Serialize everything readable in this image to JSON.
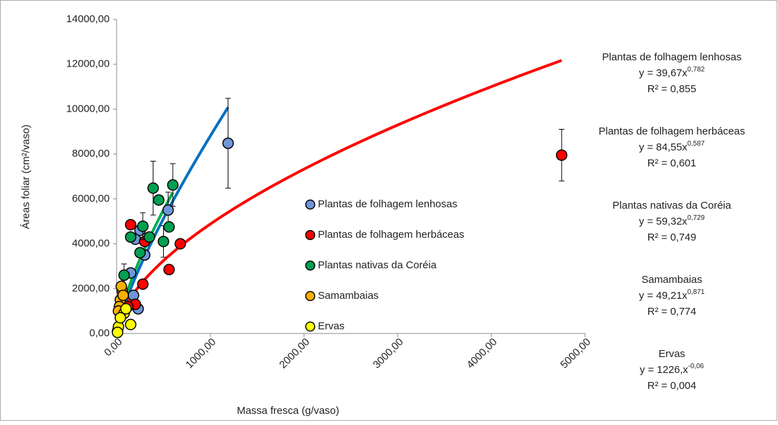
{
  "chart_data": {
    "type": "scatter",
    "x_label": "Massa fresca (g/vaso)",
    "y_label": "Áreas foliar (cm²/vaso)",
    "xlim": [
      0,
      5000
    ],
    "ylim": [
      0,
      14000
    ],
    "xticks": [
      {
        "value": 0,
        "label": "0,00"
      },
      {
        "value": 1000,
        "label": "1000,00"
      },
      {
        "value": 2000,
        "label": "2000,00"
      },
      {
        "value": 3000,
        "label": "3000,00"
      },
      {
        "value": 4000,
        "label": "4000,00"
      },
      {
        "value": 5000,
        "label": "5000,00"
      }
    ],
    "yticks": [
      {
        "value": 0,
        "label": "0,00"
      },
      {
        "value": 2000,
        "label": "2000,00"
      },
      {
        "value": 4000,
        "label": "4000,00"
      },
      {
        "value": 6000,
        "label": "6000,00"
      },
      {
        "value": 8000,
        "label": "8000,00"
      },
      {
        "value": 10000,
        "label": "10000,00"
      },
      {
        "value": 12000,
        "label": "12000,00"
      },
      {
        "value": 14000,
        "label": "14000,00"
      }
    ],
    "series": [
      {
        "name": "Plantas de folhagem lenhosas",
        "color": "#6f96d8",
        "line_color": "#0070c0",
        "x": [
          1190,
          200,
          250,
          150,
          230,
          180,
          550,
          300
        ],
        "values": [
          8480,
          4200,
          4600,
          2700,
          1100,
          1700,
          5500,
          3500
        ],
        "errors": [
          2000,
          null,
          null,
          null,
          null,
          null,
          800,
          null
        ],
        "trend": {
          "equation": "y = 39,67x",
          "exponent": "0,782",
          "r2": "R² = 0,855",
          "a": 39.67,
          "b": 0.782,
          "x_range": [
            1,
            1190
          ]
        }
      },
      {
        "name": "Plantas de folhagem herbáceas",
        "color": "#ff0000",
        "line_color": "#ff0000",
        "x": [
          4750,
          680,
          560,
          280,
          150,
          200,
          120,
          300
        ],
        "values": [
          7950,
          4000,
          2850,
          2200,
          4850,
          1300,
          1200,
          4100
        ],
        "errors": [
          1150,
          null,
          null,
          null,
          null,
          null,
          null,
          null
        ],
        "trend": {
          "equation": "y = 84,55x",
          "exponent": "0,587",
          "r2": "R² = 0,601",
          "a": 84.55,
          "b": 0.587,
          "x_range": [
            1,
            4750
          ]
        }
      },
      {
        "name": "Plantas nativas da Coréia",
        "color": "#00a050",
        "line_color": "#00b050",
        "x": [
          390,
          450,
          600,
          500,
          560,
          280,
          150,
          250,
          80,
          350
        ],
        "values": [
          6480,
          5950,
          6620,
          4100,
          4750,
          4780,
          4300,
          3600,
          2600,
          4300
        ],
        "errors": [
          1200,
          null,
          950,
          700,
          null,
          600,
          null,
          null,
          500,
          null
        ],
        "trend": {
          "equation": "y = 59,32x",
          "exponent": "0,729",
          "r2": "R² = 0,749",
          "a": 59.32,
          "b": 0.729,
          "x_range": [
            1,
            600
          ]
        }
      },
      {
        "name": "Samambaias",
        "color": "#ffb000",
        "line_color": "#ffc000",
        "x": [
          40,
          60,
          30,
          20,
          50,
          10,
          70
        ],
        "values": [
          1500,
          1900,
          1200,
          1000,
          2100,
          100,
          1700
        ],
        "errors": [
          null,
          null,
          null,
          null,
          null,
          null,
          null
        ],
        "trend": {
          "equation": "y = 49,21x",
          "exponent": "0,871",
          "r2": "R² = 0,774",
          "a": 49.21,
          "b": 0.871,
          "x_range": [
            1,
            70
          ]
        }
      },
      {
        "name": "Ervas",
        "color": "#ffff00",
        "line_color": "#ffff00",
        "x": [
          150,
          80,
          20,
          10,
          40,
          100
        ],
        "values": [
          400,
          900,
          300,
          50,
          700,
          1100
        ],
        "errors": [
          null,
          null,
          null,
          null,
          null,
          null
        ],
        "trend": {
          "equation": "y = 1226,x",
          "exponent": "-0,06",
          "r2": "R² = 0,004",
          "a": 1226,
          "b": -0.06,
          "x_range": [
            40,
            150
          ]
        }
      }
    ]
  }
}
